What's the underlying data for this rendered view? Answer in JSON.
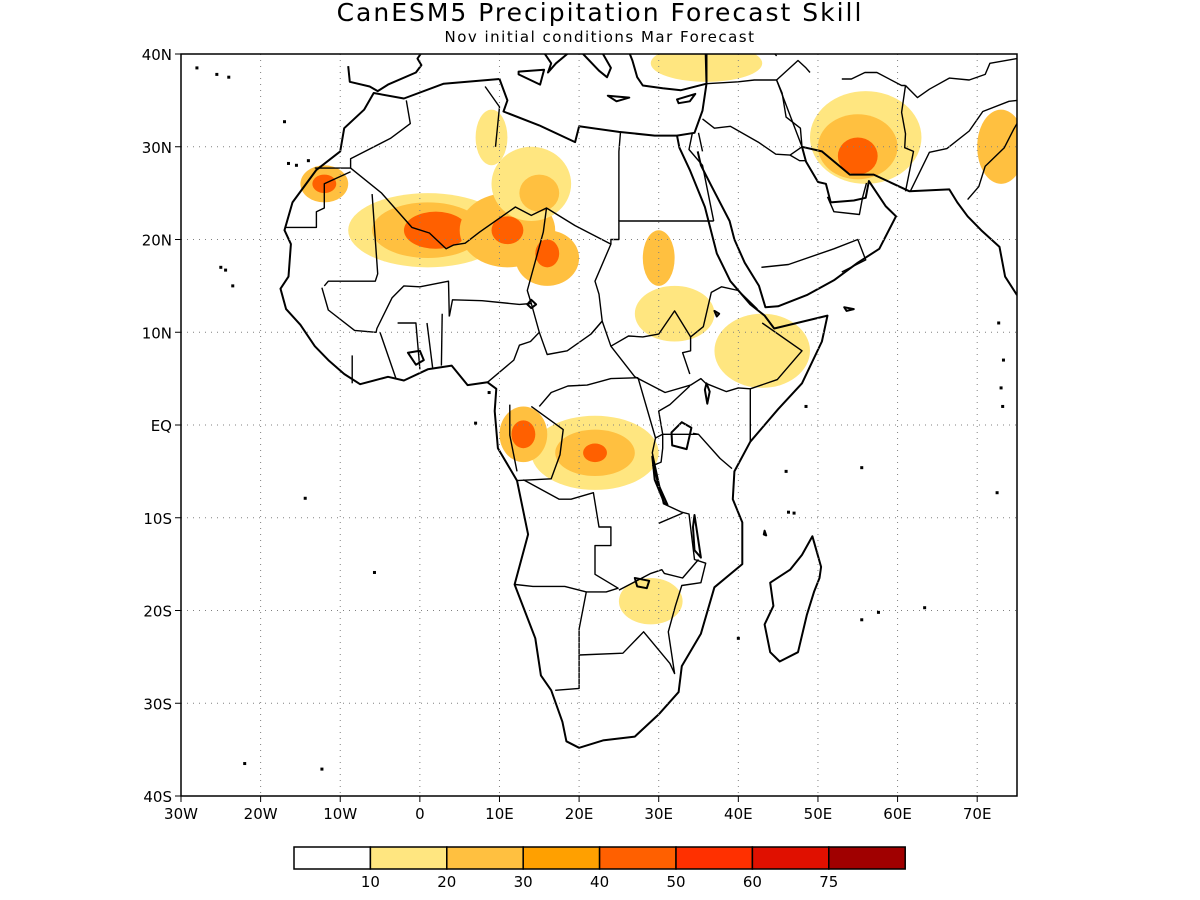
{
  "title": "CanESM5 Precipitation Forecast Skill",
  "subtitle": "Nov initial conditions  Mar Forecast",
  "map": {
    "lon_range": [
      -30,
      75
    ],
    "lat_range": [
      -40,
      40
    ],
    "x_ticks": [
      {
        "lon": -30,
        "label": "30W"
      },
      {
        "lon": -20,
        "label": "20W"
      },
      {
        "lon": -10,
        "label": "10W"
      },
      {
        "lon": 0,
        "label": "0"
      },
      {
        "lon": 10,
        "label": "10E"
      },
      {
        "lon": 20,
        "label": "20E"
      },
      {
        "lon": 30,
        "label": "30E"
      },
      {
        "lon": 40,
        "label": "40E"
      },
      {
        "lon": 50,
        "label": "50E"
      },
      {
        "lon": 60,
        "label": "60E"
      },
      {
        "lon": 70,
        "label": "70E"
      }
    ],
    "y_ticks": [
      {
        "lat": 40,
        "label": "40N"
      },
      {
        "lat": 30,
        "label": "30N"
      },
      {
        "lat": 20,
        "label": "20N"
      },
      {
        "lat": 10,
        "label": "10N"
      },
      {
        "lat": 0,
        "label": "EQ"
      },
      {
        "lat": -10,
        "label": "10S"
      },
      {
        "lat": -20,
        "label": "20S"
      },
      {
        "lat": -30,
        "label": "30S"
      },
      {
        "lat": -40,
        "label": "40S"
      }
    ],
    "skill_regions": [
      {
        "lon": 1,
        "lat": 21,
        "rx": 10,
        "ry": 4,
        "level": 1
      },
      {
        "lon": 1,
        "lat": 21,
        "rx": 7,
        "ry": 3,
        "level": 2
      },
      {
        "lon": 2,
        "lat": 21,
        "rx": 4,
        "ry": 2,
        "level": 4
      },
      {
        "lon": 11,
        "lat": 21,
        "rx": 6,
        "ry": 4,
        "level": 2
      },
      {
        "lon": 11,
        "lat": 21,
        "rx": 2,
        "ry": 1.5,
        "level": 4
      },
      {
        "lon": 16,
        "lat": 18,
        "rx": 4,
        "ry": 3,
        "level": 2
      },
      {
        "lon": 16,
        "lat": 18.5,
        "rx": 1.5,
        "ry": 1.5,
        "level": 4
      },
      {
        "lon": 14,
        "lat": 26,
        "rx": 5,
        "ry": 4,
        "level": 1
      },
      {
        "lon": 15,
        "lat": 25,
        "rx": 2.5,
        "ry": 2,
        "level": 2
      },
      {
        "lon": -12,
        "lat": 26,
        "rx": 3,
        "ry": 2,
        "level": 2
      },
      {
        "lon": -12,
        "lat": 26,
        "rx": 1.5,
        "ry": 1,
        "level": 4
      },
      {
        "lon": 9,
        "lat": 31,
        "rx": 2,
        "ry": 3,
        "level": 1
      },
      {
        "lon": 56,
        "lat": 31,
        "rx": 7,
        "ry": 5,
        "level": 1
      },
      {
        "lon": 55,
        "lat": 30,
        "rx": 5,
        "ry": 3.5,
        "level": 2
      },
      {
        "lon": 55,
        "lat": 29,
        "rx": 2.5,
        "ry": 2,
        "level": 4
      },
      {
        "lon": 36,
        "lat": 39,
        "rx": 7,
        "ry": 2,
        "level": 1
      },
      {
        "lon": 73,
        "lat": 30,
        "rx": 3,
        "ry": 4,
        "level": 2
      },
      {
        "lon": 30,
        "lat": 18,
        "rx": 2,
        "ry": 3,
        "level": 2
      },
      {
        "lon": 32,
        "lat": 12,
        "rx": 5,
        "ry": 3,
        "level": 1
      },
      {
        "lon": 43,
        "lat": 8,
        "rx": 6,
        "ry": 4,
        "level": 1
      },
      {
        "lon": 22,
        "lat": -3,
        "rx": 8,
        "ry": 4,
        "level": 1
      },
      {
        "lon": 22,
        "lat": -3,
        "rx": 5,
        "ry": 2.5,
        "level": 2
      },
      {
        "lon": 22,
        "lat": -3,
        "rx": 1.5,
        "ry": 1,
        "level": 4
      },
      {
        "lon": 13,
        "lat": -1,
        "rx": 3,
        "ry": 3,
        "level": 2
      },
      {
        "lon": 13,
        "lat": -1,
        "rx": 1.5,
        "ry": 1.5,
        "level": 4
      },
      {
        "lon": 29,
        "lat": -19,
        "rx": 4,
        "ry": 2.5,
        "level": 1
      }
    ]
  },
  "colorbar": {
    "colors": [
      "#ffffff",
      "#ffe680",
      "#ffc040",
      "#ffa000",
      "#ff6000",
      "#ff3000",
      "#e01000",
      "#a00000"
    ],
    "labels": [
      "10",
      "20",
      "30",
      "40",
      "50",
      "60",
      "75"
    ]
  }
}
